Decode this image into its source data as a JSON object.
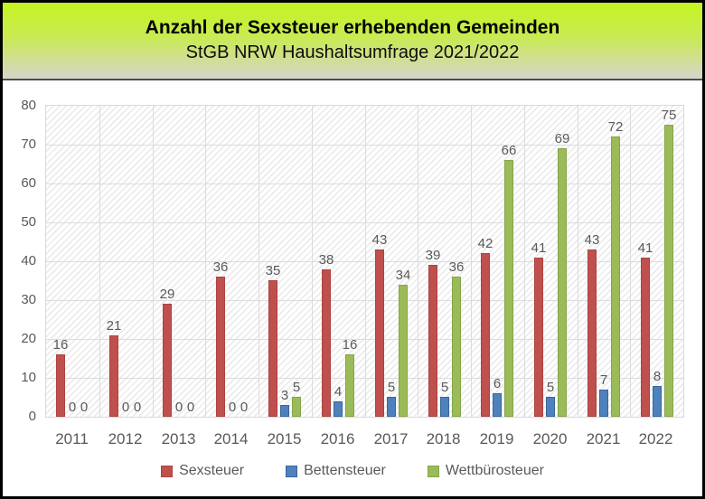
{
  "header": {
    "title": "Anzahl der Sexsteuer erhebenden Gemeinden",
    "subtitle": "StGB NRW Haushaltsumfrage 2021/2022",
    "background_top_color": "#c4f522",
    "background_bottom_color": "#d6d5cc"
  },
  "chart_data": {
    "type": "bar",
    "title": "Anzahl der Sexsteuer erhebenden Gemeinden",
    "subtitle": "StGB NRW Haushaltsumfrage 2021/2022",
    "categories": [
      "2011",
      "2012",
      "2013",
      "2014",
      "2015",
      "2016",
      "2017",
      "2018",
      "2019",
      "2020",
      "2021",
      "2022"
    ],
    "series": [
      {
        "name": "Sexsteuer",
        "color": "#c0504d",
        "border_color": "#aa4340",
        "values": [
          16,
          21,
          29,
          36,
          35,
          38,
          43,
          39,
          42,
          41,
          43,
          41
        ]
      },
      {
        "name": "Bettensteuer",
        "color": "#4f81bd",
        "border_color": "#38659b",
        "values": [
          0,
          0,
          0,
          0,
          3,
          4,
          5,
          5,
          6,
          5,
          7,
          8
        ]
      },
      {
        "name": "Wettbürosteuer",
        "color": "#9bbb59",
        "border_color": "#85a449",
        "values": [
          0,
          0,
          0,
          0,
          5,
          16,
          34,
          36,
          66,
          69,
          72,
          75
        ]
      }
    ],
    "xlabel": "",
    "ylabel": "",
    "ylim": [
      0,
      80
    ],
    "yticks": [
      0,
      10,
      20,
      30,
      40,
      50,
      60,
      70,
      80
    ],
    "grid": "horizontal-and-vertical",
    "gridline_color": "#dcdcdc",
    "plot_background": "light-upward-diagonal-hatch",
    "data_labels": true,
    "data_label_color": "#595959",
    "axis_label_color": "#595959",
    "legend_position": "bottom"
  }
}
